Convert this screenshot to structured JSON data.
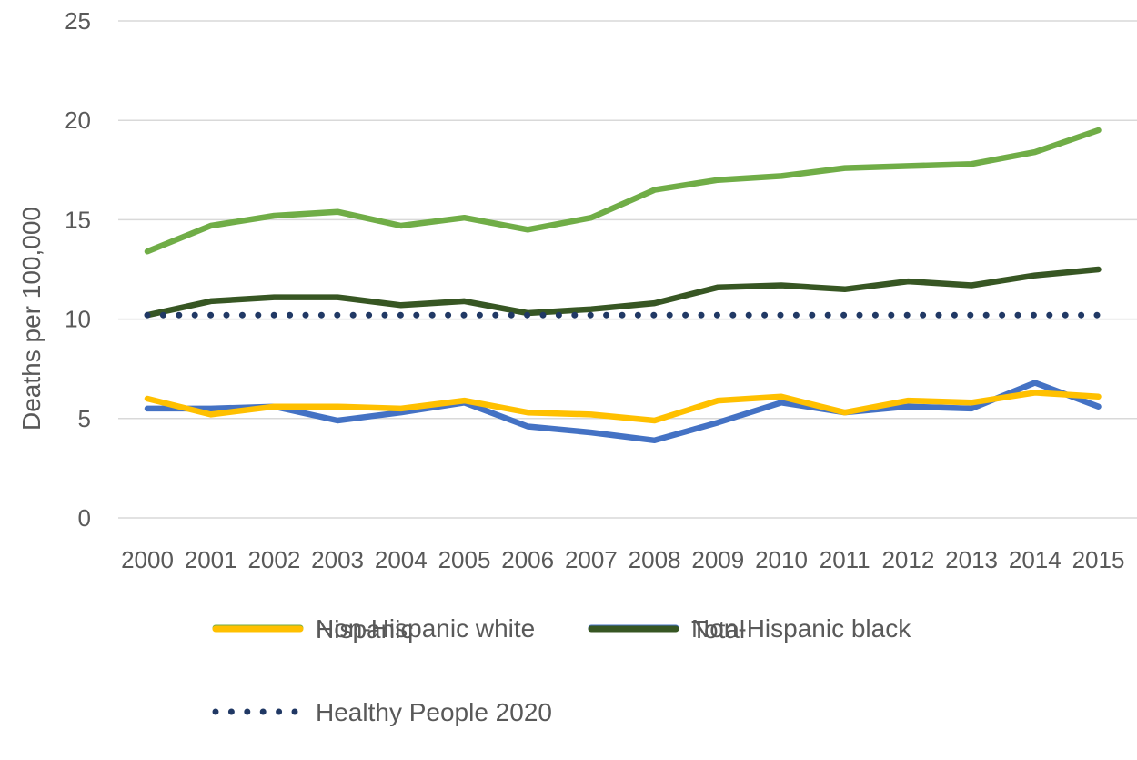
{
  "chart_data": {
    "type": "line",
    "title": "",
    "xlabel": "",
    "ylabel": "Deaths per 100,000",
    "ylim": [
      0,
      25
    ],
    "yticks": [
      0,
      5,
      10,
      15,
      20,
      25
    ],
    "grid": "horizontal",
    "legend_position": "bottom",
    "categories": [
      "2000",
      "2001",
      "2002",
      "2003",
      "2004",
      "2005",
      "2006",
      "2007",
      "2008",
      "2009",
      "2010",
      "2011",
      "2012",
      "2013",
      "2014",
      "2015"
    ],
    "series": [
      {
        "name": "Non-Hispanic white",
        "color": "#70AD47",
        "style": "solid",
        "values": [
          13.4,
          14.7,
          15.2,
          15.4,
          14.7,
          15.1,
          14.5,
          15.1,
          16.5,
          17.0,
          17.2,
          17.6,
          17.7,
          17.8,
          18.4,
          19.5
        ]
      },
      {
        "name": "Non-Hispanic black",
        "color": "#4472C4",
        "style": "solid",
        "values": [
          5.5,
          5.5,
          5.6,
          4.9,
          5.3,
          5.8,
          4.6,
          4.3,
          3.9,
          4.8,
          5.8,
          5.3,
          5.6,
          5.5,
          6.8,
          5.6
        ]
      },
      {
        "name": "Hispanic",
        "color": "#FFC000",
        "style": "solid",
        "values": [
          6.0,
          5.2,
          5.6,
          5.6,
          5.5,
          5.9,
          5.3,
          5.2,
          4.9,
          5.9,
          6.1,
          5.3,
          5.9,
          5.8,
          6.3,
          6.1
        ]
      },
      {
        "name": "Total",
        "color": "#375623",
        "style": "solid",
        "values": [
          10.2,
          10.9,
          11.1,
          11.1,
          10.7,
          10.9,
          10.3,
          10.5,
          10.8,
          11.6,
          11.7,
          11.5,
          11.9,
          11.7,
          12.2,
          12.5
        ]
      },
      {
        "name": "Healthy People 2020",
        "color": "#203864",
        "style": "dotted",
        "values": [
          10.2,
          10.2,
          10.2,
          10.2,
          10.2,
          10.2,
          10.2,
          10.2,
          10.2,
          10.2,
          10.2,
          10.2,
          10.2,
          10.2,
          10.2,
          10.2
        ]
      }
    ]
  }
}
